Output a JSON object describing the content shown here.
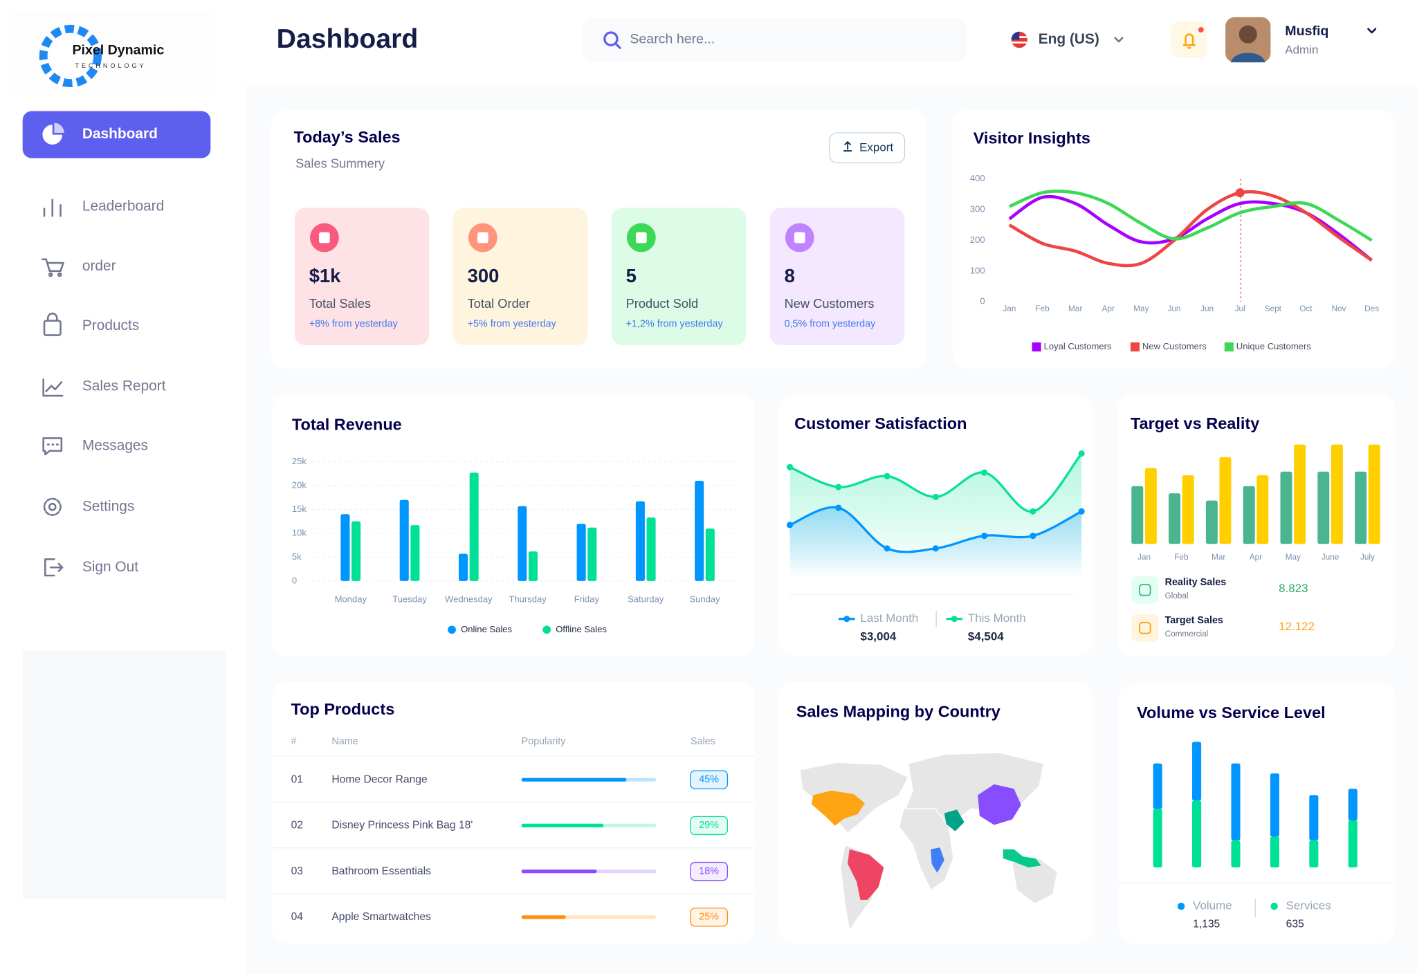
{
  "logo": {
    "name": "Pixel Dynamic",
    "tagline": "TECHNOLOGY"
  },
  "sidebar": {
    "items": [
      "Dashboard",
      "Leaderboard",
      "order",
      "Products",
      "Sales Report",
      "Messages",
      "Settings",
      "Sign Out"
    ]
  },
  "header": {
    "title": "Dashboard",
    "search_placeholder": "Search here...",
    "language": "Eng (US)",
    "user": {
      "name": "Musfiq",
      "role": "Admin"
    }
  },
  "todays_sales": {
    "title": "Today’s Sales",
    "subtitle": "Sales Summery",
    "export": "Export",
    "cards": [
      {
        "value": "$1k",
        "label": "Total Sales",
        "change": "+8% from yesterday",
        "color": "#ffe2e5",
        "icon_color": "#fa5a7d"
      },
      {
        "value": "300",
        "label": "Total Order",
        "change": "+5% from yesterday",
        "color": "#fff4de",
        "icon_color": "#ff947a"
      },
      {
        "value": "5",
        "label": "Product Sold",
        "change": "+1,2% from yesterday",
        "color": "#dcfce7",
        "icon_color": "#3cd856"
      },
      {
        "value": "8",
        "label": "New Customers",
        "change": "0,5% from yesterday",
        "color": "#f3e8ff",
        "icon_color": "#bf83ff"
      }
    ]
  },
  "visitor_insights": {
    "type": "line",
    "title": "Visitor Insights",
    "categories": [
      "Jan",
      "Feb",
      "Mar",
      "Apr",
      "May",
      "Jun",
      "Jun",
      "Jul",
      "Sept",
      "Oct",
      "Nov",
      "Des"
    ],
    "ylim": [
      0,
      400
    ],
    "yticks": [
      0,
      100,
      200,
      300,
      400
    ],
    "series": [
      {
        "name": "Loyal Customers",
        "color": "#a700ff",
        "values": [
          270,
          340,
          320,
          250,
          195,
          205,
          270,
          320,
          320,
          290,
          220,
          135
        ]
      },
      {
        "name": "New Customers",
        "color": "#ef4444",
        "values": [
          250,
          190,
          165,
          125,
          125,
          200,
          300,
          355,
          345,
          290,
          210,
          135
        ]
      },
      {
        "name": "Unique Customers",
        "color": "#3cd856",
        "values": [
          310,
          355,
          355,
          320,
          255,
          205,
          240,
          290,
          310,
          320,
          265,
          200
        ]
      }
    ]
  },
  "total_revenue": {
    "type": "bar",
    "title": "Total Revenue",
    "categories": [
      "Monday",
      "Tuesday",
      "Wednesday",
      "Thursday",
      "Friday",
      "Saturday",
      "Sunday"
    ],
    "ylim": [
      0,
      25000
    ],
    "yticks": [
      0,
      {
        "value": 5000,
        "label": "5k"
      },
      {
        "value": 10000,
        "label": "10k"
      },
      {
        "value": 15000,
        "label": "15k"
      },
      {
        "value": 20000,
        "label": "20k"
      },
      {
        "value": 25000,
        "label": "25k"
      }
    ],
    "grid": true,
    "series": [
      {
        "name": "Online Sales",
        "color": "#0095ff",
        "values": [
          14000,
          17000,
          5700,
          15700,
          12000,
          16700,
          21000
        ]
      },
      {
        "name": "Offline Sales",
        "color": "#00e096",
        "values": [
          12500,
          11700,
          22700,
          6200,
          11200,
          13300,
          11000
        ]
      }
    ]
  },
  "customer_satisfaction": {
    "type": "area",
    "title": "Customer Satisfaction",
    "series": [
      {
        "name": "Last Month",
        "color": "#0095ff",
        "total": "$3,004",
        "values": [
          79,
          98,
          53,
          53,
          67,
          67,
          94
        ]
      },
      {
        "name": "This Month",
        "color": "#07e098",
        "total": "$4,504",
        "values": [
          143,
          121,
          133,
          110,
          137,
          94,
          158
        ]
      }
    ]
  },
  "target_vs_reality": {
    "type": "bar",
    "title": "Target vs Reality",
    "categories": [
      "Jan",
      "Feb",
      "Mar",
      "Apr",
      "May",
      "June",
      "July"
    ],
    "series": [
      {
        "name": "Reality Sales",
        "subtitle": "Global",
        "total": "8.823",
        "color": "#4ab58e",
        "values": [
          64,
          56,
          48,
          64,
          80,
          80,
          80
        ]
      },
      {
        "name": "Target Sales",
        "subtitle": "Commercial",
        "total": "12.122",
        "color": "#ffcf00",
        "values": [
          84,
          76,
          96,
          76,
          110,
          110,
          110
        ]
      }
    ]
  },
  "top_products": {
    "title": "Top Products",
    "columns": [
      "#",
      "Name",
      "Popularity",
      "Sales"
    ],
    "rows": [
      {
        "rank": "01",
        "name": "Home Decor Range",
        "popularity": 78,
        "sales": "45%",
        "color": "#0095ff"
      },
      {
        "rank": "02",
        "name": "Disney Princess Pink Bag 18'",
        "popularity": 61,
        "sales": "29%",
        "color": "#00e096"
      },
      {
        "rank": "03",
        "name": "Bathroom Essentials",
        "popularity": 56,
        "sales": "18%",
        "color": "#884dff"
      },
      {
        "rank": "04",
        "name": "Apple Smartwatches",
        "popularity": 33,
        "sales": "25%",
        "color": "#ff8f0d"
      }
    ]
  },
  "sales_mapping": {
    "title": "Sales Mapping by Country"
  },
  "volume_service": {
    "type": "bar",
    "stacked": true,
    "title": "Volume vs Service Level",
    "series": [
      {
        "name": "Volume",
        "color": "#0095ff",
        "total": "1,135",
        "values": [
          50,
          65,
          85,
          70,
          50,
          35
        ]
      },
      {
        "name": "Services",
        "color": "#00e096",
        "total": "635",
        "values": [
          65,
          74,
          30,
          34,
          30,
          52
        ]
      }
    ]
  }
}
